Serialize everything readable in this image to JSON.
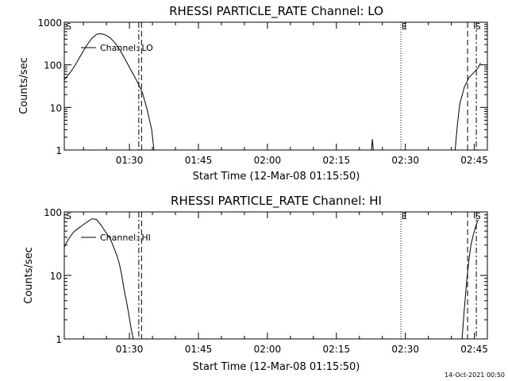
{
  "chart_data": [
    {
      "type": "line",
      "title": "RHESSI PARTICLE_RATE Channel: LO",
      "xlabel": "Start Time (12-Mar-08 01:15:50)",
      "ylabel": "Counts/sec",
      "yscale": "log",
      "ylim": [
        1,
        1000
      ],
      "xlim_min": [
        0,
        92
      ],
      "ytick_labels": [
        "1",
        "10",
        "100",
        "1000"
      ],
      "xtick_labels": [
        "01:30",
        "01:45",
        "02:00",
        "02:15",
        "02:30",
        "02:45"
      ],
      "legend": "Channel: LO",
      "markers": [
        {
          "label": "S",
          "t": 0
        },
        {
          "label": "E",
          "t": 73
        },
        {
          "label": "S",
          "t": 89
        }
      ],
      "vlines": [
        {
          "t": 16.2,
          "style": "dashdot"
        },
        {
          "t": 16.8,
          "style": "dashed"
        },
        {
          "t": 73.2,
          "style": "dotted"
        },
        {
          "t": 87.7,
          "style": "dashed"
        },
        {
          "t": 89.6,
          "style": "dashdot"
        }
      ],
      "series": [
        {
          "x": [
            0,
            1,
            2,
            3,
            4,
            5,
            6,
            7,
            8,
            9,
            10,
            11,
            12,
            13,
            14,
            15,
            16,
            17,
            18,
            19,
            19.5
          ],
          "y": [
            45,
            60,
            85,
            130,
            200,
            300,
            420,
            520,
            540,
            500,
            430,
            330,
            230,
            150,
            95,
            60,
            38,
            22,
            9,
            3,
            1
          ]
        },
        {
          "x": [
            66.8,
            67,
            67.2
          ],
          "y": [
            1,
            1.8,
            1
          ]
        },
        {
          "x": [
            85,
            85.5,
            86,
            87,
            88,
            89,
            90,
            90.5
          ],
          "y": [
            1,
            4,
            12,
            30,
            50,
            65,
            85,
            110
          ]
        }
      ]
    },
    {
      "type": "line",
      "title": "RHESSI PARTICLE_RATE Channel: HI",
      "xlabel": "Start Time (12-Mar-08 01:15:50)",
      "ylabel": "Counts/sec",
      "yscale": "log",
      "ylim": [
        1,
        100
      ],
      "xlim_min": [
        0,
        92
      ],
      "ytick_labels": [
        "1",
        "10",
        "100"
      ],
      "xtick_labels": [
        "01:30",
        "01:45",
        "02:00",
        "02:15",
        "02:30",
        "02:45"
      ],
      "legend": "Channel: HI",
      "markers": [
        {
          "label": "S",
          "t": 0
        },
        {
          "label": "E",
          "t": 73
        },
        {
          "label": "S",
          "t": 89
        }
      ],
      "vlines": [
        {
          "t": 16.2,
          "style": "dashdot"
        },
        {
          "t": 16.8,
          "style": "dashed"
        },
        {
          "t": 73.2,
          "style": "dotted"
        },
        {
          "t": 87.7,
          "style": "dashed"
        },
        {
          "t": 89.6,
          "style": "dashdot"
        }
      ],
      "series": [
        {
          "x": [
            0,
            0.5,
            1,
            2,
            3,
            4,
            5,
            6,
            7,
            8,
            9,
            10,
            11,
            11.5,
            12,
            12.5,
            13,
            13.5,
            14,
            14.5,
            15
          ],
          "y": [
            28,
            33,
            38,
            48,
            55,
            62,
            70,
            78,
            76,
            62,
            48,
            38,
            25,
            20,
            15,
            10,
            6,
            4,
            2.5,
            1.5,
            1
          ]
        },
        {
          "x": [
            86.5,
            87,
            87.5,
            88,
            88.5,
            89,
            89.5,
            90
          ],
          "y": [
            1,
            3,
            8,
            18,
            32,
            45,
            60,
            75
          ]
        }
      ]
    }
  ],
  "footer": {
    "timestamp": "14-Oct-2021 00:50"
  }
}
